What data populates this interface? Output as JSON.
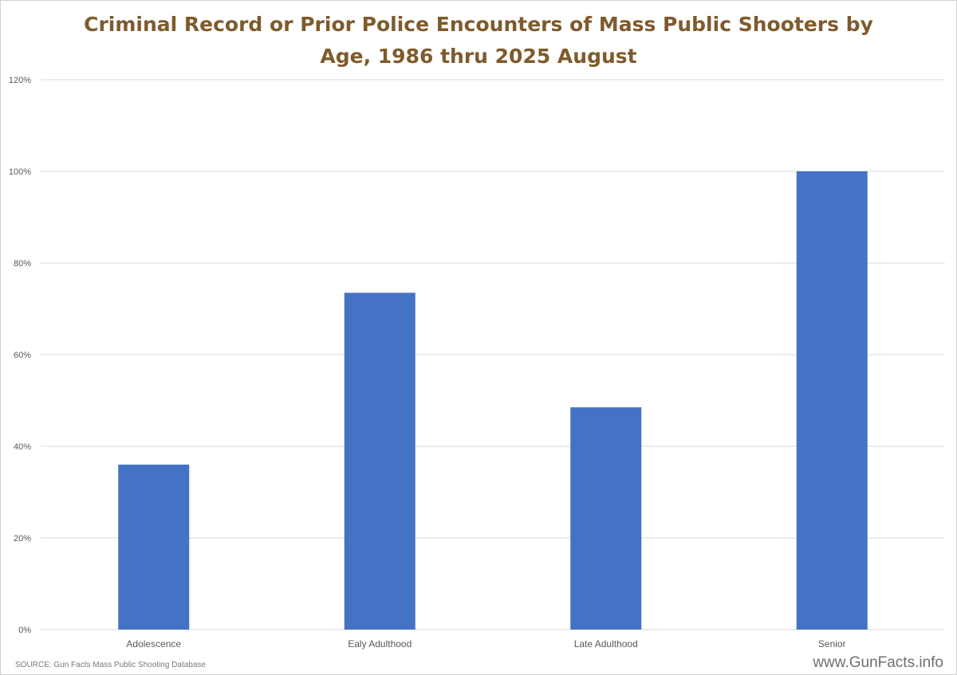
{
  "title_lines": [
    "Criminal  Record or Prior Police Encounters of Mass Public Shooters by",
    "Age, 1986 thru 2025 August"
  ],
  "source": "SOURCE:  Gun Facts Mass Public Shooting Database",
  "watermark": "www.GunFacts.info",
  "colors": {
    "bar": "#4472c4",
    "title": "#7f5a2c",
    "grid": "#d9d9d9",
    "axis_text": "#595959"
  },
  "chart_data": {
    "type": "bar",
    "title": "Criminal  Record or Prior Police Encounters of Mass Public Shooters by Age, 1986 thru 2025 August",
    "categories": [
      "Adolescence",
      "Ealy Adulthood",
      "Late Adulthood",
      "Senior"
    ],
    "values": [
      36,
      73.5,
      48.5,
      100
    ],
    "ylim": [
      0,
      120
    ],
    "yticks": [
      0,
      20,
      40,
      60,
      80,
      100,
      120
    ],
    "ytick_labels": [
      "0%",
      "20%",
      "40%",
      "60%",
      "80%",
      "100%",
      "120%"
    ],
    "xlabel": "",
    "ylabel": "",
    "grid": true,
    "legend": "none"
  }
}
